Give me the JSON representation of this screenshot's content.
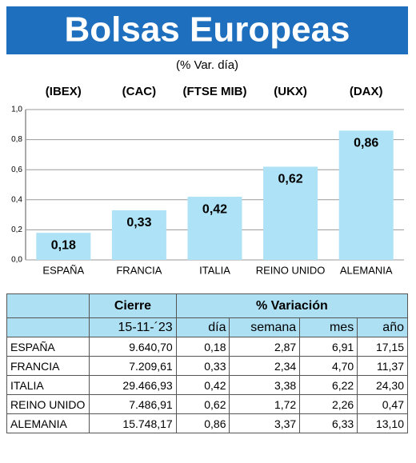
{
  "chart_data": {
    "type": "bar",
    "title": "Bolsas Europeas",
    "subtitle": "(% Var. día)",
    "index_labels": [
      "(IBEX)",
      "(CAC)",
      "(FTSE MIB)",
      "(UKX)",
      "(DAX)"
    ],
    "categories": [
      "ESPAÑA",
      "FRANCIA",
      "ITALIA",
      "REINO UNIDO",
      "ALEMANIA"
    ],
    "values": [
      0.18,
      0.33,
      0.42,
      0.62,
      0.86
    ],
    "value_labels": [
      "0,18",
      "0,33",
      "0,42",
      "0,62",
      "0,86"
    ],
    "color": "#aee2f6",
    "ylim": [
      0,
      1
    ],
    "yticks": [
      {
        "value": 0,
        "label": "0,0"
      },
      {
        "value": 0.2,
        "label": "0,2"
      },
      {
        "value": 0.4,
        "label": "0,4"
      },
      {
        "value": 0.6,
        "label": "0,6"
      },
      {
        "value": 0.8,
        "label": "0,8"
      },
      {
        "value": 1,
        "label": "1,0"
      }
    ],
    "grid": true
  },
  "table": {
    "header": [
      "Cierre",
      "% Variación"
    ],
    "subheader": [
      "15-11-´23",
      "día",
      "semana",
      "mes",
      "año"
    ],
    "rows": [
      [
        "ESPAÑA",
        "9.640,70",
        "0,18",
        "2,87",
        "6,91",
        "17,15"
      ],
      [
        "FRANCIA",
        "7.209,61",
        "0,33",
        "2,34",
        "4,70",
        "11,37"
      ],
      [
        "ITALIA",
        "29.466,93",
        "0,42",
        "3,38",
        "6,22",
        "24,30"
      ],
      [
        "REINO UNIDO",
        "7.486,91",
        "0,62",
        "1,72",
        "2,26",
        "0,47"
      ],
      [
        "ALEMANIA",
        "15.748,17",
        "0,86",
        "3,37",
        "6,33",
        "13,10"
      ]
    ]
  }
}
